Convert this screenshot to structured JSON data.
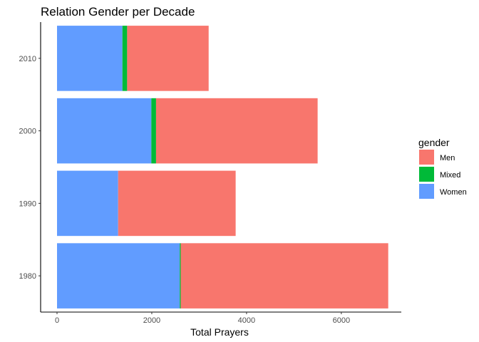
{
  "chart_data": {
    "type": "bar",
    "orientation": "horizontal",
    "stacked": true,
    "title": "Relation Gender per Decade",
    "xlabel": "Total Prayers",
    "ylabel": "",
    "categories": [
      "1980",
      "1990",
      "2000",
      "2010"
    ],
    "xlim": [
      0,
      7000
    ],
    "xticks": [
      0,
      2000,
      4000,
      6000
    ],
    "grid": false,
    "legend": {
      "title": "gender",
      "position": "right"
    },
    "stack_order": [
      "Women",
      "Mixed",
      "Men"
    ],
    "series": [
      {
        "name": "Men",
        "color": "#F8766D",
        "values": [
          4380,
          2480,
          3410,
          1720
        ]
      },
      {
        "name": "Mixed",
        "color": "#00BA38",
        "values": [
          20,
          0,
          100,
          100
        ]
      },
      {
        "name": "Women",
        "color": "#619CFF",
        "values": [
          2590,
          1290,
          1990,
          1380
        ]
      }
    ]
  }
}
